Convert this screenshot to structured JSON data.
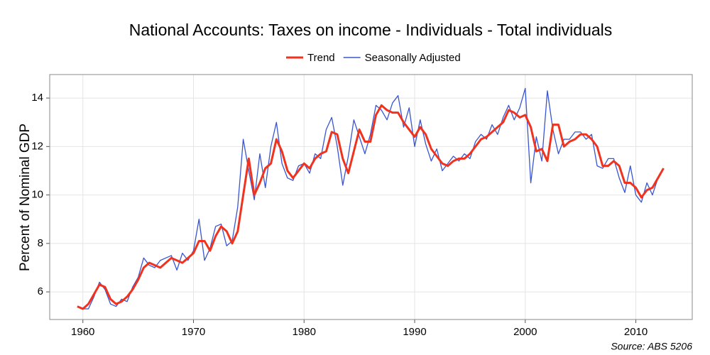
{
  "chart_data": {
    "type": "line",
    "title": "National Accounts: Taxes on income - Individuals - Total individuals",
    "y_label": "Percent of Nominal GDP",
    "source": "Source: ABS 5206",
    "x": [
      1959.5,
      1960,
      1960.5,
      1961,
      1961.5,
      1962,
      1962.5,
      1963,
      1963.5,
      1964,
      1964.5,
      1965,
      1965.5,
      1966,
      1966.5,
      1967,
      1967.5,
      1968,
      1968.5,
      1969,
      1969.5,
      1970,
      1970.5,
      1971,
      1971.5,
      1972,
      1972.5,
      1973,
      1973.5,
      1974,
      1974.5,
      1975,
      1975.5,
      1976,
      1976.5,
      1977,
      1977.5,
      1978,
      1978.5,
      1979,
      1979.5,
      1980,
      1980.5,
      1981,
      1981.5,
      1982,
      1982.5,
      1983,
      1983.5,
      1984,
      1984.5,
      1985,
      1985.5,
      1986,
      1986.5,
      1987,
      1987.5,
      1988,
      1988.5,
      1989,
      1989.5,
      1990,
      1990.5,
      1991,
      1991.5,
      1992,
      1992.5,
      1993,
      1993.5,
      1994,
      1994.5,
      1995,
      1995.5,
      1996,
      1996.5,
      1997,
      1997.5,
      1998,
      1998.5,
      1999,
      1999.5,
      2000,
      2000.5,
      2001,
      2001.5,
      2002,
      2002.5,
      2003,
      2003.5,
      2004,
      2004.5,
      2005,
      2005.5,
      2006,
      2006.5,
      2007,
      2007.5,
      2008,
      2008.5,
      2009,
      2009.5,
      2010,
      2010.5,
      2011,
      2011.5,
      2012,
      2012.5
    ],
    "series": [
      {
        "name": "Trend",
        "color": "#f0321e",
        "values": [
          5.4,
          5.3,
          5.5,
          5.9,
          6.3,
          6.2,
          5.7,
          5.5,
          5.6,
          5.8,
          6.1,
          6.5,
          7.0,
          7.2,
          7.1,
          7.0,
          7.2,
          7.4,
          7.3,
          7.2,
          7.4,
          7.6,
          8.1,
          8.1,
          7.7,
          8.3,
          8.7,
          8.5,
          8.0,
          8.5,
          10.0,
          11.5,
          10.0,
          10.5,
          11.1,
          11.3,
          12.3,
          11.8,
          11.0,
          10.7,
          11.0,
          11.3,
          11.1,
          11.5,
          11.7,
          11.8,
          12.6,
          12.5,
          11.5,
          10.9,
          11.8,
          12.7,
          12.2,
          12.2,
          13.3,
          13.7,
          13.5,
          13.4,
          13.4,
          13.0,
          12.7,
          12.4,
          12.8,
          12.5,
          11.9,
          11.6,
          11.3,
          11.2,
          11.4,
          11.5,
          11.5,
          11.7,
          12.0,
          12.3,
          12.4,
          12.6,
          12.8,
          13.0,
          13.5,
          13.4,
          13.2,
          13.3,
          12.8,
          11.8,
          11.9,
          11.4,
          12.9,
          12.9,
          12.0,
          12.2,
          12.3,
          12.5,
          12.5,
          12.3,
          12.0,
          11.2,
          11.2,
          11.4,
          11.2,
          10.5,
          10.5,
          10.3,
          9.9,
          10.2,
          10.3,
          10.7,
          11.1
        ]
      },
      {
        "name": "Seasonally Adjusted",
        "color": "#3a55d0",
        "values": [
          5.4,
          5.3,
          5.3,
          5.8,
          6.4,
          6.1,
          5.5,
          5.4,
          5.7,
          5.6,
          6.2,
          6.6,
          7.4,
          7.1,
          7.0,
          7.3,
          7.4,
          7.5,
          6.9,
          7.6,
          7.3,
          7.7,
          9.0,
          7.3,
          7.8,
          8.7,
          8.8,
          7.9,
          8.1,
          9.5,
          12.3,
          11.0,
          9.8,
          11.7,
          10.3,
          12.0,
          13.0,
          11.3,
          10.7,
          10.6,
          11.2,
          11.3,
          10.9,
          11.7,
          11.5,
          12.7,
          13.2,
          12.0,
          10.4,
          11.6,
          13.1,
          12.4,
          11.7,
          12.5,
          13.7,
          13.5,
          13.1,
          13.8,
          14.1,
          12.8,
          13.6,
          12.0,
          13.1,
          12.1,
          11.4,
          11.9,
          11.0,
          11.3,
          11.6,
          11.4,
          11.7,
          11.5,
          12.2,
          12.5,
          12.3,
          12.9,
          12.5,
          13.2,
          13.7,
          13.1,
          13.6,
          14.4,
          10.5,
          12.4,
          11.4,
          14.3,
          12.7,
          11.7,
          12.3,
          12.3,
          12.6,
          12.6,
          12.3,
          12.5,
          11.2,
          11.1,
          11.5,
          11.5,
          10.7,
          10.1,
          11.2,
          10.0,
          9.7,
          10.5,
          10.0,
          10.7,
          11.1
        ]
      }
    ],
    "xlim": [
      1957,
      2015.1
    ],
    "xticks": [
      1960,
      1970,
      1980,
      1990,
      2000,
      2010
    ],
    "ylim": [
      4.86,
      14.97
    ],
    "yticks": [
      6,
      8,
      10,
      12,
      14
    ],
    "grid": true,
    "legend": "top"
  }
}
